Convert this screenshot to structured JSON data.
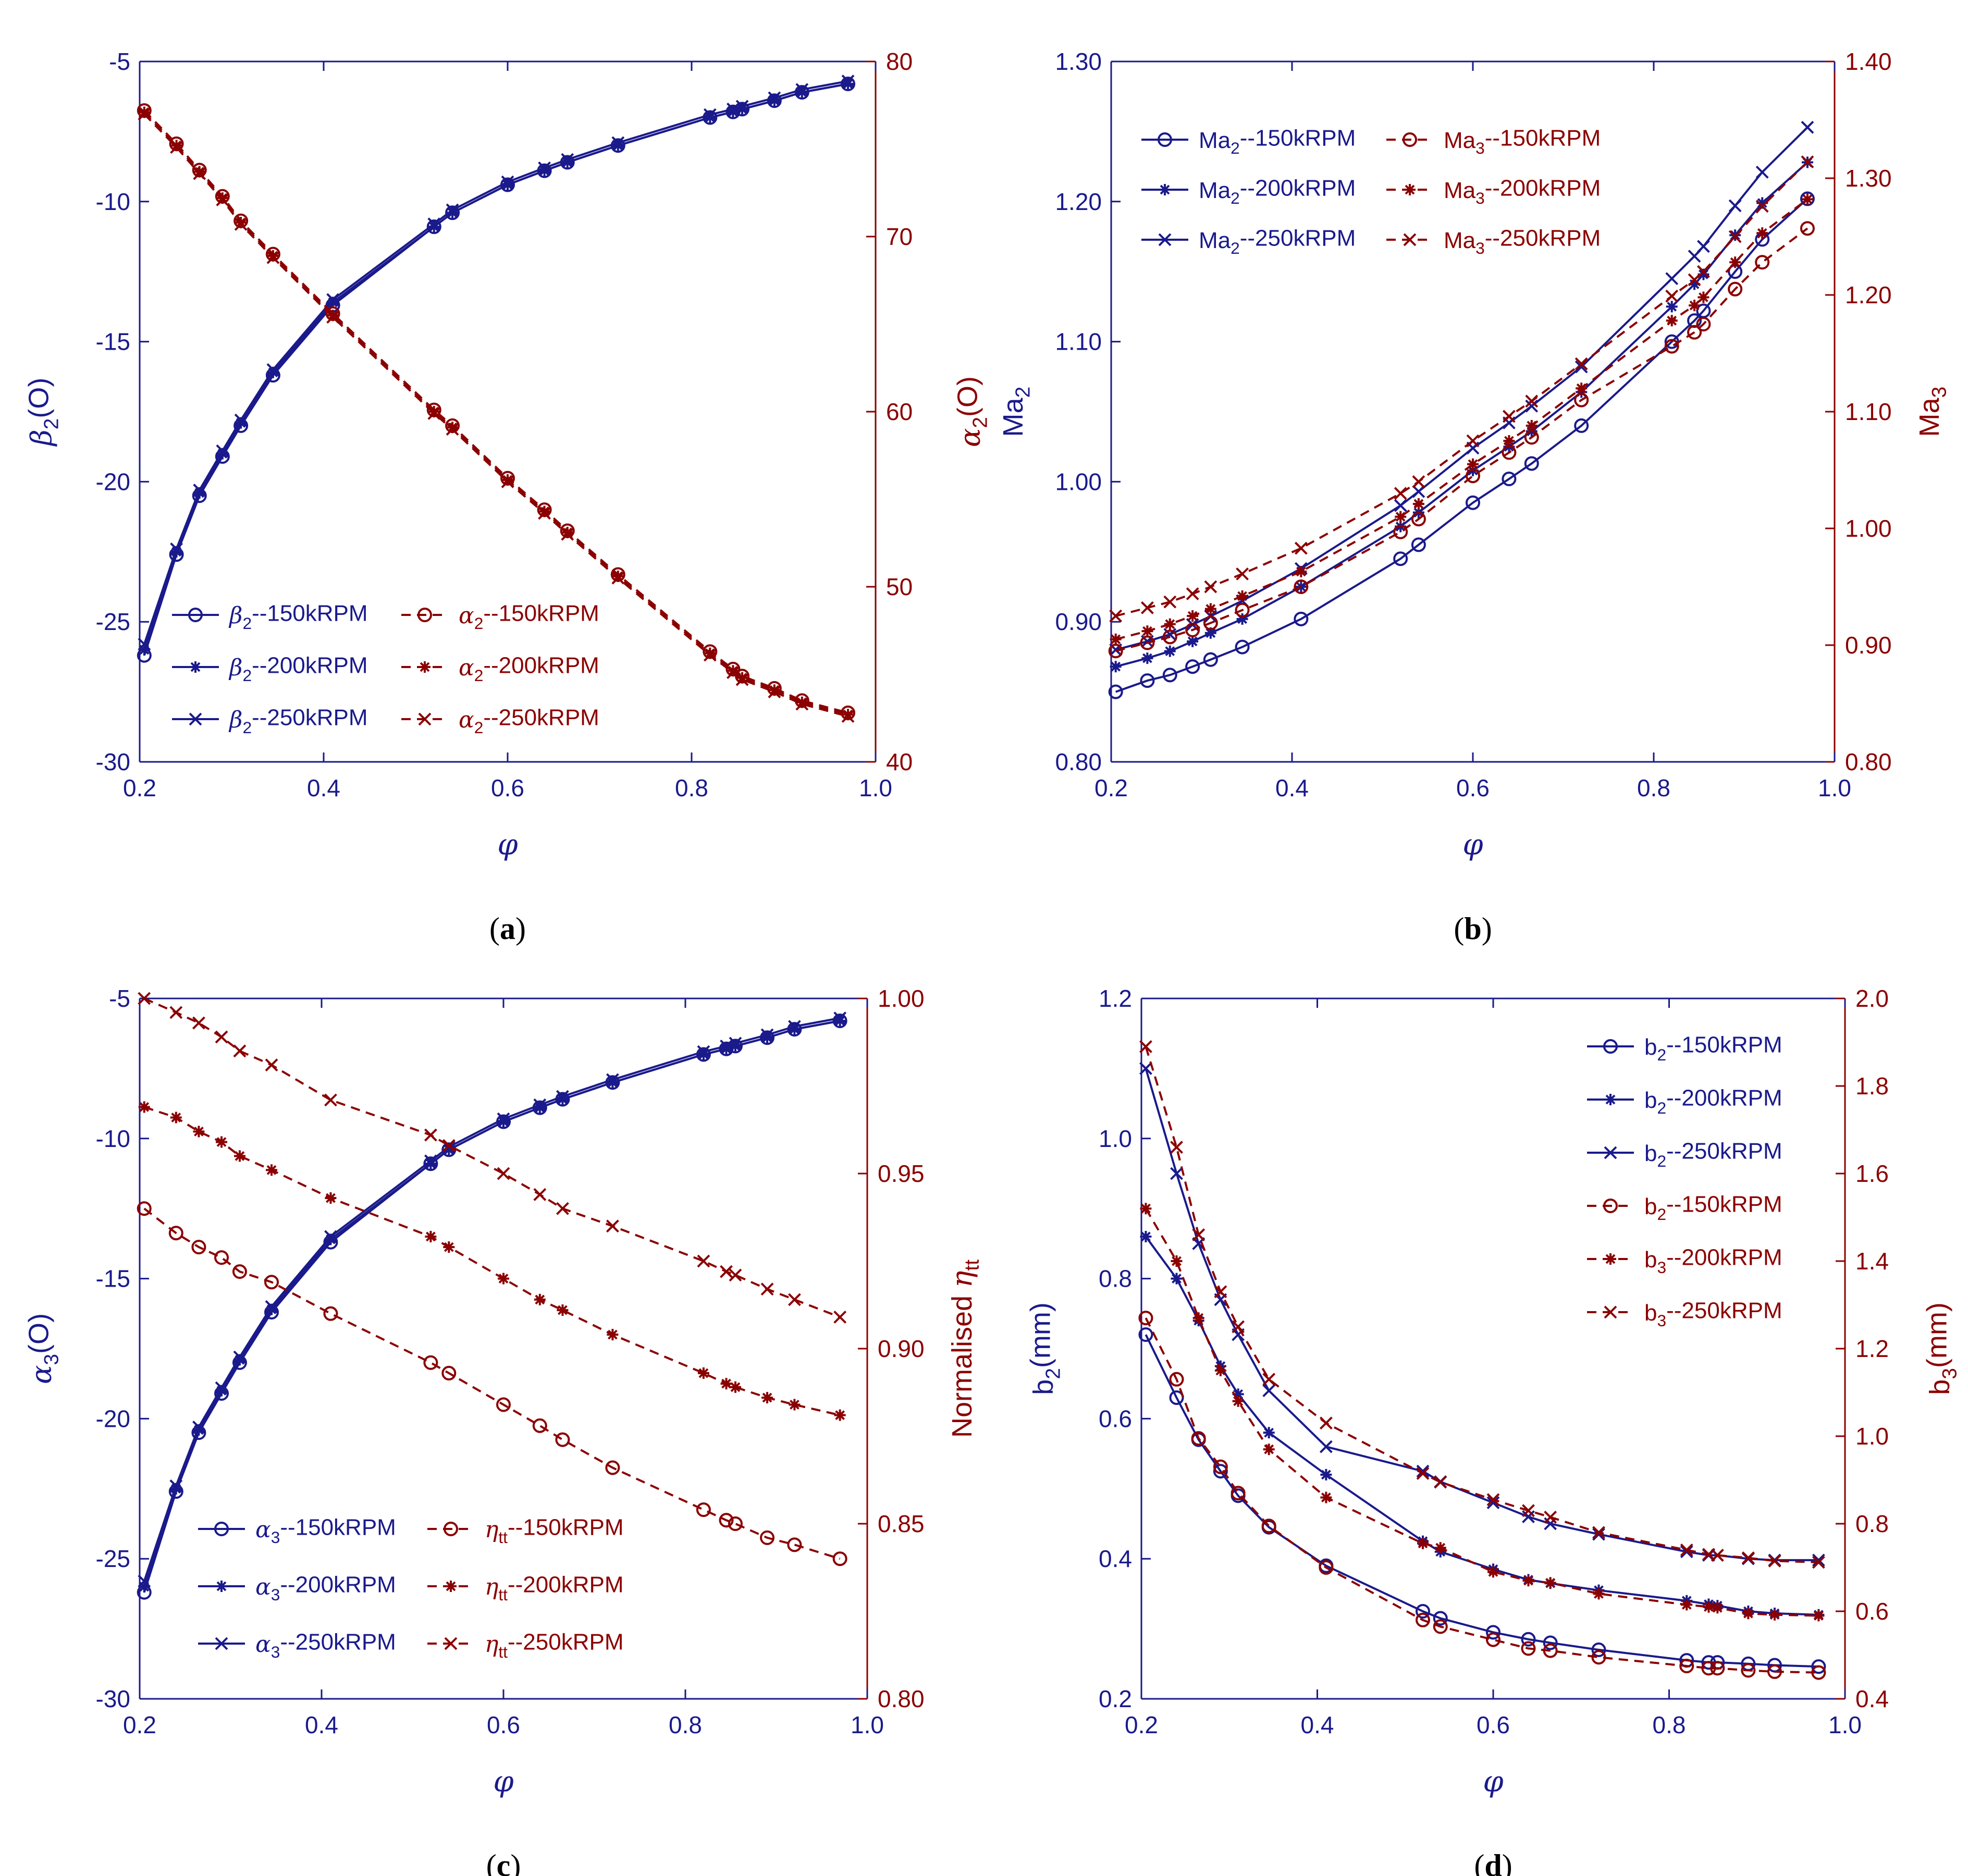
{
  "colors": {
    "blue": "#1a1a8c",
    "red": "#8b0000"
  },
  "phi": [
    0.205,
    0.24,
    0.265,
    0.29,
    0.31,
    0.345,
    0.41,
    0.52,
    0.54,
    0.6,
    0.64,
    0.665,
    0.72,
    0.82,
    0.845,
    0.855,
    0.89,
    0.92,
    0.97
  ],
  "chart_data": [
    {
      "panel": "a",
      "type": "line",
      "caption": "a",
      "xlabel": "φ",
      "xlim": [
        0.2,
        1.0
      ],
      "xticks": [
        "0.2",
        "0.4",
        "0.6",
        "0.8",
        "1.0"
      ],
      "ylabel_left": "β2(O)",
      "ylim_left": [
        -30,
        -5
      ],
      "yticks_left": [
        "-30",
        "-25",
        "-20",
        "-15",
        "-10",
        "-5"
      ],
      "ylabel_right": "α2(O)",
      "ylim_right": [
        40,
        80
      ],
      "yticks_right": [
        "40",
        "50",
        "60",
        "70",
        "80"
      ],
      "legend": {
        "position": "bottom-left",
        "columns": 2
      },
      "series": [
        {
          "name": "β2--150kRPM",
          "axis": "left",
          "style": "solid",
          "marker": "circle",
          "values": [
            -26.2,
            -22.6,
            -20.5,
            -19.1,
            -18.0,
            -16.2,
            -13.7,
            -10.9,
            -10.4,
            -9.4,
            -8.9,
            -8.6,
            -8.0,
            -7.0,
            -6.8,
            -6.7,
            -6.4,
            -6.1,
            -5.8
          ]
        },
        {
          "name": "β2--200kRPM",
          "axis": "left",
          "style": "solid",
          "marker": "star",
          "values": [
            -26.0,
            -22.5,
            -20.4,
            -19.0,
            -17.9,
            -16.1,
            -13.6,
            -10.9,
            -10.4,
            -9.4,
            -8.9,
            -8.6,
            -8.0,
            -7.0,
            -6.8,
            -6.7,
            -6.4,
            -6.1,
            -5.8
          ]
        },
        {
          "name": "β2--250kRPM",
          "axis": "left",
          "style": "solid",
          "marker": "x",
          "values": [
            -25.8,
            -22.4,
            -20.3,
            -18.9,
            -17.8,
            -16.0,
            -13.5,
            -10.8,
            -10.3,
            -9.3,
            -8.8,
            -8.5,
            -7.9,
            -6.9,
            -6.7,
            -6.6,
            -6.3,
            -6.0,
            -5.7
          ]
        },
        {
          "name": "α2--150kRPM",
          "axis": "right",
          "style": "dashed",
          "marker": "circle",
          "values": [
            77.2,
            75.3,
            73.8,
            72.3,
            70.9,
            69.0,
            65.6,
            60.1,
            59.2,
            56.2,
            54.4,
            53.2,
            50.7,
            46.3,
            45.3,
            44.9,
            44.2,
            43.5,
            42.8
          ]
        },
        {
          "name": "α2--200kRPM",
          "axis": "right",
          "style": "dashed",
          "marker": "star",
          "values": [
            77.1,
            75.2,
            73.7,
            72.2,
            70.8,
            68.9,
            65.5,
            60.0,
            59.1,
            56.1,
            54.3,
            53.1,
            50.6,
            46.2,
            45.2,
            44.8,
            44.1,
            43.4,
            42.7
          ]
        },
        {
          "name": "α2--250kRPM",
          "axis": "right",
          "style": "dashed",
          "marker": "x",
          "values": [
            77.0,
            75.1,
            73.6,
            72.1,
            70.7,
            68.8,
            65.4,
            59.9,
            59.0,
            56.0,
            54.2,
            53.0,
            50.5,
            46.1,
            45.1,
            44.7,
            44.0,
            43.3,
            42.6
          ]
        }
      ]
    },
    {
      "panel": "b",
      "type": "line",
      "caption": "b",
      "xlabel": "φ",
      "xlim": [
        0.2,
        1.0
      ],
      "xticks": [
        "0.2",
        "0.4",
        "0.6",
        "0.8",
        "1.0"
      ],
      "ylabel_left": "Ma2",
      "ylim_left": [
        0.8,
        1.3
      ],
      "yticks_left": [
        "0.80",
        "0.90",
        "1.00",
        "1.10",
        "1.20",
        "1.30"
      ],
      "ylabel_right": "Ma3",
      "ylim_right": [
        0.8,
        1.4
      ],
      "yticks_right": [
        "0.80",
        "0.90",
        "1.00",
        "1.10",
        "1.20",
        "1.30",
        "1.40"
      ],
      "legend": {
        "position": "top-left",
        "columns": 2
      },
      "series": [
        {
          "name": "Ma2--150kRPM",
          "axis": "left",
          "style": "solid",
          "marker": "circle",
          "values": [
            0.85,
            0.858,
            0.862,
            0.868,
            0.873,
            0.882,
            0.902,
            0.945,
            0.955,
            0.985,
            1.002,
            1.013,
            1.04,
            1.1,
            1.115,
            1.122,
            1.15,
            1.173,
            1.202
          ]
        },
        {
          "name": "Ma2--200kRPM",
          "axis": "left",
          "style": "solid",
          "marker": "star",
          "values": [
            0.868,
            0.874,
            0.879,
            0.886,
            0.892,
            0.902,
            0.925,
            0.968,
            0.978,
            1.008,
            1.025,
            1.036,
            1.064,
            1.125,
            1.141,
            1.148,
            1.176,
            1.199,
            1.228
          ]
        },
        {
          "name": "Ma2--250kRPM",
          "axis": "left",
          "style": "solid",
          "marker": "x",
          "values": [
            0.88,
            0.886,
            0.891,
            0.898,
            0.904,
            0.915,
            0.938,
            0.983,
            0.993,
            1.024,
            1.042,
            1.054,
            1.082,
            1.145,
            1.161,
            1.168,
            1.197,
            1.221,
            1.253
          ]
        },
        {
          "name": "Ma3--150kRPM",
          "axis": "right",
          "style": "dashed",
          "marker": "circle",
          "values": [
            0.895,
            0.902,
            0.907,
            0.913,
            0.919,
            0.93,
            0.95,
            0.997,
            1.008,
            1.045,
            1.065,
            1.078,
            1.11,
            1.156,
            1.168,
            1.175,
            1.205,
            1.228,
            1.257
          ]
        },
        {
          "name": "Ma3--200kRPM",
          "axis": "right",
          "style": "dashed",
          "marker": "star",
          "values": [
            0.905,
            0.912,
            0.918,
            0.925,
            0.931,
            0.942,
            0.963,
            1.01,
            1.021,
            1.055,
            1.075,
            1.088,
            1.12,
            1.178,
            1.191,
            1.198,
            1.228,
            1.253,
            1.282
          ]
        },
        {
          "name": "Ma3--250kRPM",
          "axis": "right",
          "style": "dashed",
          "marker": "x",
          "values": [
            0.925,
            0.932,
            0.937,
            0.944,
            0.95,
            0.961,
            0.983,
            1.03,
            1.04,
            1.075,
            1.096,
            1.109,
            1.141,
            1.199,
            1.213,
            1.22,
            1.25,
            1.276,
            1.314
          ]
        }
      ]
    },
    {
      "panel": "c",
      "type": "line",
      "caption": "c",
      "xlabel": "φ",
      "xlim": [
        0.2,
        1.0
      ],
      "xticks": [
        "0.2",
        "0.4",
        "0.6",
        "0.8",
        "1.0"
      ],
      "ylabel_left": "α3(O)",
      "ylim_left": [
        -30,
        -5
      ],
      "yticks_left": [
        "-30",
        "-25",
        "-20",
        "-15",
        "-10",
        "-5"
      ],
      "ylabel_right": "Normalised ηtt",
      "ylim_right": [
        0.8,
        1.0
      ],
      "yticks_right": [
        "0.80",
        "0.85",
        "0.90",
        "0.95",
        "1.00"
      ],
      "legend": {
        "position": "bottom-left",
        "columns": 2
      },
      "series": [
        {
          "name": "α3--150kRPM",
          "axis": "left",
          "style": "solid",
          "marker": "circle",
          "values": [
            -26.2,
            -22.6,
            -20.5,
            -19.1,
            -18.0,
            -16.2,
            -13.7,
            -10.9,
            -10.4,
            -9.4,
            -8.9,
            -8.6,
            -8.0,
            -7.0,
            -6.8,
            -6.7,
            -6.4,
            -6.1,
            -5.8
          ]
        },
        {
          "name": "α3--200kRPM",
          "axis": "left",
          "style": "solid",
          "marker": "star",
          "values": [
            -26.0,
            -22.5,
            -20.4,
            -19.0,
            -17.9,
            -16.1,
            -13.6,
            -10.9,
            -10.4,
            -9.4,
            -8.9,
            -8.6,
            -8.0,
            -7.0,
            -6.8,
            -6.7,
            -6.4,
            -6.1,
            -5.8
          ]
        },
        {
          "name": "α3--250kRPM",
          "axis": "left",
          "style": "solid",
          "marker": "x",
          "values": [
            -25.8,
            -22.4,
            -20.3,
            -18.9,
            -17.8,
            -16.0,
            -13.5,
            -10.8,
            -10.3,
            -9.3,
            -8.8,
            -8.5,
            -7.9,
            -6.9,
            -6.7,
            -6.6,
            -6.3,
            -6.0,
            -5.7
          ]
        },
        {
          "name": "ηtt--150kRPM",
          "axis": "right",
          "style": "dashed",
          "marker": "circle",
          "values": [
            0.94,
            0.933,
            0.929,
            0.926,
            0.922,
            0.919,
            0.91,
            0.896,
            0.893,
            0.884,
            0.878,
            0.874,
            0.866,
            0.854,
            0.851,
            0.85,
            0.846,
            0.844,
            0.84
          ]
        },
        {
          "name": "ηtt--200kRPM",
          "axis": "right",
          "style": "dashed",
          "marker": "star",
          "values": [
            0.969,
            0.966,
            0.962,
            0.959,
            0.955,
            0.951,
            0.943,
            0.932,
            0.929,
            0.92,
            0.914,
            0.911,
            0.904,
            0.893,
            0.89,
            0.889,
            0.886,
            0.884,
            0.881
          ]
        },
        {
          "name": "ηtt--250kRPM",
          "axis": "right",
          "style": "dashed",
          "marker": "x",
          "values": [
            1.0,
            0.996,
            0.993,
            0.989,
            0.985,
            0.981,
            0.971,
            0.961,
            0.958,
            0.95,
            0.944,
            0.94,
            0.935,
            0.925,
            0.922,
            0.921,
            0.917,
            0.914,
            0.909
          ]
        }
      ]
    },
    {
      "panel": "d",
      "type": "line",
      "caption": "d",
      "xlabel": "φ",
      "xlim": [
        0.2,
        1.0
      ],
      "xticks": [
        "0.2",
        "0.4",
        "0.6",
        "0.8",
        "1.0"
      ],
      "ylabel_left": "b2(mm)",
      "ylim_left": [
        0.2,
        1.2
      ],
      "yticks_left": [
        "0.2",
        "0.4",
        "0.6",
        "0.8",
        "1.0",
        "1.2"
      ],
      "ylabel_right": "b3(mm)",
      "ylim_right": [
        0.4,
        2.0
      ],
      "yticks_right": [
        "0.4",
        "0.6",
        "0.8",
        "1.0",
        "1.2",
        "1.4",
        "1.6",
        "1.8",
        "2.0"
      ],
      "legend": {
        "position": "top-right",
        "columns": 1
      },
      "series": [
        {
          "name": "b2--150kRPM",
          "axis": "left",
          "style": "solid",
          "marker": "circle",
          "values": [
            0.72,
            0.63,
            0.57,
            0.525,
            0.49,
            0.445,
            0.39,
            0.325,
            0.315,
            0.295,
            0.285,
            0.28,
            0.27,
            0.255,
            0.252,
            0.252,
            0.25,
            0.248,
            0.246
          ]
        },
        {
          "name": "b2--200kRPM",
          "axis": "left",
          "style": "solid",
          "marker": "star",
          "values": [
            0.86,
            0.8,
            0.74,
            0.675,
            0.635,
            0.58,
            0.52,
            0.425,
            0.41,
            0.385,
            0.37,
            0.365,
            0.355,
            0.34,
            0.335,
            0.333,
            0.325,
            0.322,
            0.32
          ]
        },
        {
          "name": "b2--250kRPM",
          "axis": "left",
          "style": "solid",
          "marker": "x",
          "values": [
            1.1,
            0.95,
            0.85,
            0.77,
            0.72,
            0.64,
            0.56,
            0.525,
            0.51,
            0.48,
            0.46,
            0.45,
            0.435,
            0.41,
            0.405,
            0.405,
            0.4,
            0.398,
            0.398
          ]
        },
        {
          "name": "b2--150kRPM",
          "axis": "right",
          "style": "dashed",
          "marker": "circle",
          "values": [
            1.27,
            1.13,
            0.995,
            0.93,
            0.87,
            0.795,
            0.7,
            0.58,
            0.565,
            0.535,
            0.515,
            0.51,
            0.495,
            0.475,
            0.47,
            0.47,
            0.465,
            0.462,
            0.46
          ]
        },
        {
          "name": "b3--200kRPM",
          "axis": "right",
          "style": "dashed",
          "marker": "star",
          "values": [
            1.52,
            1.4,
            1.27,
            1.15,
            1.08,
            0.97,
            0.86,
            0.755,
            0.745,
            0.69,
            0.67,
            0.665,
            0.64,
            0.615,
            0.61,
            0.608,
            0.595,
            0.592,
            0.59
          ]
        },
        {
          "name": "b3--250kRPM",
          "axis": "right",
          "style": "dashed",
          "marker": "x",
          "values": [
            1.89,
            1.66,
            1.46,
            1.33,
            1.25,
            1.13,
            1.03,
            0.915,
            0.895,
            0.855,
            0.83,
            0.815,
            0.78,
            0.74,
            0.73,
            0.728,
            0.722,
            0.715,
            0.712
          ]
        }
      ]
    }
  ]
}
